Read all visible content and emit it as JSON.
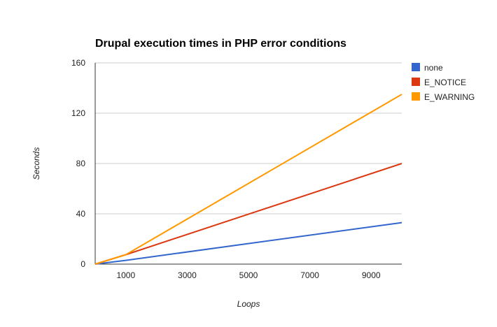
{
  "chart_data": {
    "type": "line",
    "title": "Drupal execution times in PHP error conditions",
    "xlabel": "Loops",
    "ylabel": "Seconds",
    "xlim": [
      0,
      10000
    ],
    "ylim": [
      0,
      160
    ],
    "x_ticks": [
      1000,
      3000,
      5000,
      7000,
      9000
    ],
    "y_ticks": [
      0,
      40,
      80,
      120,
      160
    ],
    "grid": "horizontal",
    "legend_position": "right",
    "x": [
      0,
      1000,
      10000
    ],
    "series": [
      {
        "name": "none",
        "color": "#3366cc",
        "values": [
          0,
          3,
          33
        ]
      },
      {
        "name": "E_NOTICE",
        "color": "#dc3912",
        "values": [
          0,
          7.5,
          80
        ]
      },
      {
        "name": "E_WARNING",
        "color": "#ff9900",
        "values": [
          0,
          7.5,
          135
        ]
      }
    ]
  }
}
